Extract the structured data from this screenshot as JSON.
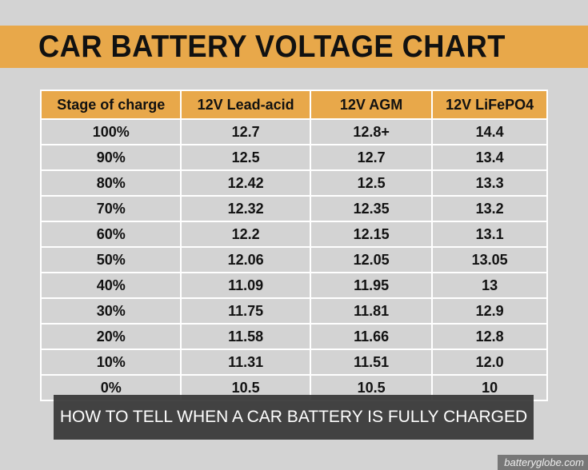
{
  "title": "CAR BATTERY VOLTAGE CHART",
  "headers": [
    "Stage of charge",
    "12V Lead-acid",
    "12V AGM",
    "12V LiFePO4"
  ],
  "rows": [
    [
      "100%",
      "12.7",
      "12.8+",
      "14.4"
    ],
    [
      "90%",
      "12.5",
      "12.7",
      "13.4"
    ],
    [
      "80%",
      "12.42",
      "12.5",
      "13.3"
    ],
    [
      "70%",
      "12.32",
      "12.35",
      "13.2"
    ],
    [
      "60%",
      "12.2",
      "12.15",
      "13.1"
    ],
    [
      "50%",
      "12.06",
      "12.05",
      "13.05"
    ],
    [
      "40%",
      "11.09",
      "11.95",
      "13"
    ],
    [
      "30%",
      "11.75",
      "11.81",
      "12.9"
    ],
    [
      "20%",
      "11.58",
      "11.66",
      "12.8"
    ],
    [
      "10%",
      "11.31",
      "11.51",
      "12.0"
    ],
    [
      "0%",
      "10.5",
      "10.5",
      "10"
    ]
  ],
  "caption": "HOW TO TELL WHEN A CAR BATTERY IS FULLY CHARGED",
  "watermark": "batteryglobe.com"
}
